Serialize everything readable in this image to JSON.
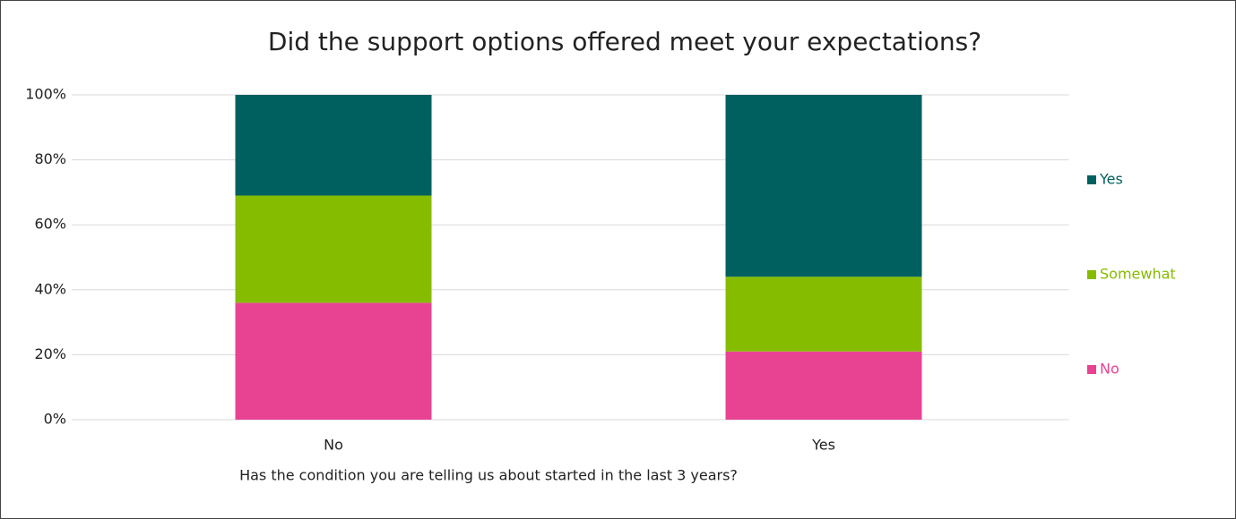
{
  "chart_data": {
    "type": "stacked_bar",
    "title": "Did the support options offered meet your expectations?",
    "x_label": "Has the condition you are telling us about started in the last 3 years?",
    "categories": [
      "No",
      "Yes"
    ],
    "series": [
      {
        "name": "No",
        "color": "#e84393",
        "values": [
          36,
          21
        ]
      },
      {
        "name": "Somewhat",
        "color": "#86bc00",
        "values": [
          33,
          23
        ]
      },
      {
        "name": "Yes",
        "color": "#006060",
        "values": [
          31,
          56
        ]
      }
    ],
    "ylim": [
      0,
      100
    ],
    "yticks": [
      {
        "value": 0,
        "label": "0%"
      },
      {
        "value": 20,
        "label": "20%"
      },
      {
        "value": 40,
        "label": "40%"
      },
      {
        "value": 60,
        "label": "60%"
      },
      {
        "value": 80,
        "label": "80%"
      },
      {
        "value": 100,
        "label": "100%"
      }
    ],
    "grid": true,
    "legend": "right"
  }
}
